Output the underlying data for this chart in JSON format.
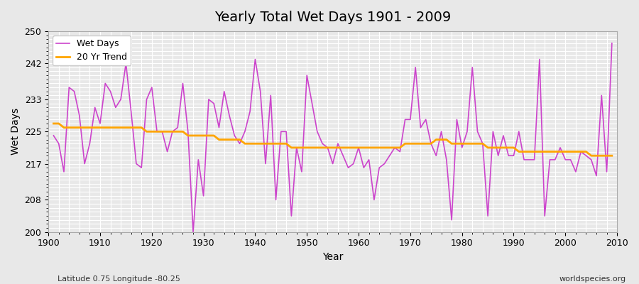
{
  "title": "Yearly Total Wet Days 1901 - 2009",
  "xlabel": "Year",
  "ylabel": "Wet Days",
  "footnote_left": "Latitude 0.75 Longitude -80.25",
  "footnote_right": "worldspecies.org",
  "ylim": [
    200,
    250
  ],
  "yticks": [
    200,
    208,
    217,
    225,
    233,
    242,
    250
  ],
  "years": [
    1901,
    1902,
    1903,
    1904,
    1905,
    1906,
    1907,
    1908,
    1909,
    1910,
    1911,
    1912,
    1913,
    1914,
    1915,
    1916,
    1917,
    1918,
    1919,
    1920,
    1921,
    1922,
    1923,
    1924,
    1925,
    1926,
    1927,
    1928,
    1929,
    1930,
    1931,
    1932,
    1933,
    1934,
    1935,
    1936,
    1937,
    1938,
    1939,
    1940,
    1941,
    1942,
    1943,
    1944,
    1945,
    1946,
    1947,
    1948,
    1949,
    1950,
    1951,
    1952,
    1953,
    1954,
    1955,
    1956,
    1957,
    1958,
    1959,
    1960,
    1961,
    1962,
    1963,
    1964,
    1965,
    1966,
    1967,
    1968,
    1969,
    1970,
    1971,
    1972,
    1973,
    1974,
    1975,
    1976,
    1977,
    1978,
    1979,
    1980,
    1981,
    1982,
    1983,
    1984,
    1985,
    1986,
    1987,
    1988,
    1989,
    1990,
    1991,
    1992,
    1993,
    1994,
    1995,
    1996,
    1997,
    1998,
    1999,
    2000,
    2001,
    2002,
    2003,
    2004,
    2005,
    2006,
    2007,
    2008,
    2009
  ],
  "wet_days": [
    224,
    222,
    215,
    236,
    235,
    229,
    217,
    222,
    231,
    227,
    237,
    235,
    231,
    233,
    242,
    230,
    217,
    216,
    233,
    236,
    225,
    225,
    220,
    225,
    226,
    237,
    225,
    200,
    218,
    209,
    233,
    232,
    226,
    235,
    229,
    224,
    222,
    225,
    230,
    243,
    235,
    217,
    234,
    208,
    225,
    225,
    204,
    221,
    215,
    239,
    232,
    225,
    222,
    221,
    217,
    222,
    219,
    216,
    217,
    221,
    216,
    218,
    208,
    216,
    217,
    219,
    221,
    220,
    228,
    228,
    241,
    226,
    228,
    222,
    219,
    225,
    218,
    203,
    228,
    221,
    225,
    241,
    225,
    222,
    204,
    225,
    219,
    224,
    219,
    219,
    225,
    218,
    218,
    218,
    243,
    204,
    218,
    218,
    221,
    218,
    218,
    215,
    220,
    219,
    218,
    214,
    234,
    215,
    247
  ],
  "trend": [
    227,
    227,
    226,
    226,
    226,
    226,
    226,
    226,
    226,
    226,
    226,
    226,
    226,
    226,
    226,
    226,
    226,
    226,
    225,
    225,
    225,
    225,
    225,
    225,
    225,
    225,
    224,
    224,
    224,
    224,
    224,
    224,
    223,
    223,
    223,
    223,
    223,
    222,
    222,
    222,
    222,
    222,
    222,
    222,
    222,
    222,
    221,
    221,
    221,
    221,
    221,
    221,
    221,
    221,
    221,
    221,
    221,
    221,
    221,
    221,
    221,
    221,
    221,
    221,
    221,
    221,
    221,
    221,
    222,
    222,
    222,
    222,
    222,
    222,
    223,
    223,
    223,
    222,
    222,
    222,
    222,
    222,
    222,
    222,
    221,
    221,
    221,
    221,
    221,
    221,
    220,
    220,
    220,
    220,
    220,
    220,
    220,
    220,
    220,
    220,
    220,
    220,
    220,
    220,
    219,
    219,
    219,
    219,
    219
  ],
  "line_color": "#cc44cc",
  "trend_color": "#ffa500",
  "bg_color": "#e8e8e8",
  "grid_color": "#ffffff",
  "legend_bg": "#ffffff"
}
